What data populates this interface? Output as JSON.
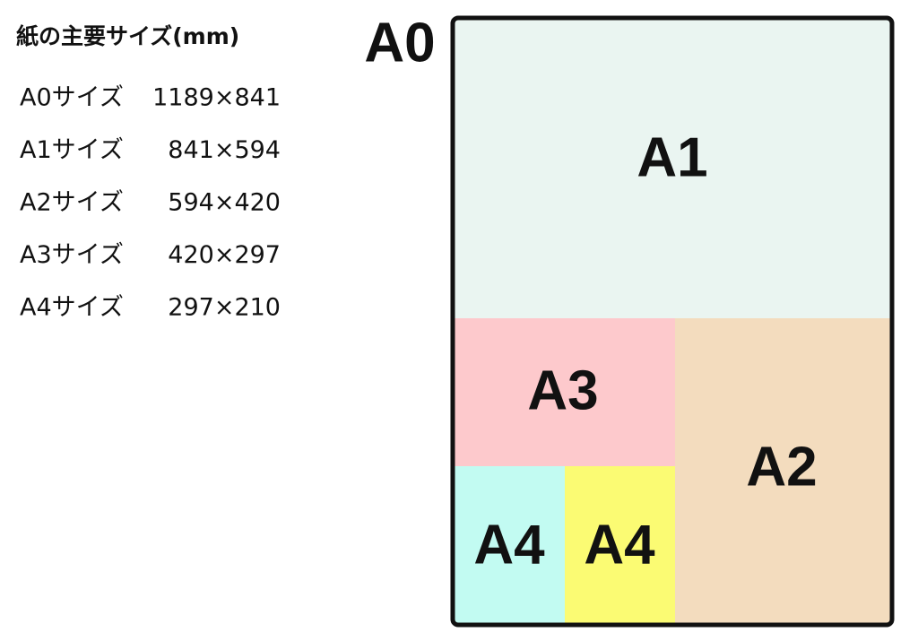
{
  "title": "紙の主要サイズ(mm)",
  "sizes": [
    {
      "name": "A0サイズ",
      "dimensions": "1189×841"
    },
    {
      "name": "A1サイズ",
      "dimensions": "841×594"
    },
    {
      "name": "A2サイズ",
      "dimensions": "594×420"
    },
    {
      "name": "A3サイズ",
      "dimensions": "420×297"
    },
    {
      "name": "A4サイズ",
      "dimensions": "297×210"
    }
  ],
  "diagram": {
    "outer_label": "A0",
    "regions": [
      {
        "label": "A1"
      },
      {
        "label": "A3"
      },
      {
        "label": "A2"
      },
      {
        "label": "A4"
      },
      {
        "label": "A4"
      }
    ]
  }
}
